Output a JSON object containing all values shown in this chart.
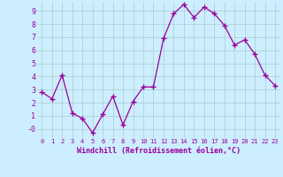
{
  "xlabel": "Windchill (Refroidissement éolien,°C)",
  "x_values": [
    0,
    1,
    2,
    3,
    4,
    5,
    6,
    7,
    8,
    9,
    10,
    11,
    12,
    13,
    14,
    15,
    16,
    17,
    18,
    19,
    20,
    21,
    22,
    23
  ],
  "y_values": [
    2.8,
    2.3,
    4.1,
    1.2,
    0.8,
    -0.3,
    1.1,
    2.5,
    0.3,
    2.1,
    3.2,
    3.2,
    6.9,
    8.8,
    9.5,
    8.5,
    9.3,
    8.8,
    7.9,
    6.4,
    6.8,
    5.7,
    4.1,
    3.3
  ],
  "line_color": "#990099",
  "marker_color": "#990099",
  "bg_color": "#cceeff",
  "grid_color": "#aacccc",
  "tick_label_color": "#990099",
  "axis_label_color": "#990099",
  "ylim": [
    -0.7,
    9.7
  ],
  "xlim": [
    -0.5,
    23.5
  ],
  "yticks": [
    0,
    1,
    2,
    3,
    4,
    5,
    6,
    7,
    8,
    9
  ],
  "ytick_labels": [
    "-0",
    "1",
    "2",
    "3",
    "4",
    "5",
    "6",
    "7",
    "8",
    "9"
  ]
}
